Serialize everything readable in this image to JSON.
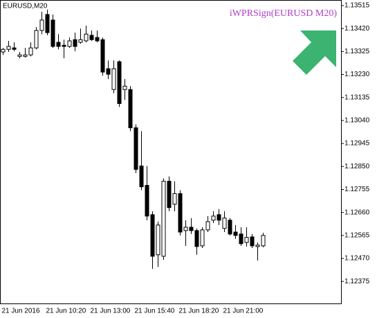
{
  "chart_data": {
    "type": "candlestick",
    "title": "EURUSD,M20",
    "annotation": "iWPRSign(EURUSD M20)",
    "categories": [
      "21 Jun 2016",
      null,
      null,
      null,
      null,
      null,
      null,
      null,
      "21 Jun 10:20",
      null,
      null,
      null,
      null,
      null,
      null,
      null,
      "21 Jun 13:00",
      null,
      null,
      null,
      null,
      null,
      null,
      null,
      "21 Jun 15:40",
      null,
      null,
      null,
      null,
      null,
      null,
      null,
      "21 Jun 18:20",
      null,
      null,
      null,
      null,
      null,
      null,
      null,
      "21 Jun 21:00",
      null,
      null,
      null,
      null,
      null,
      null,
      null
    ],
    "open": [
      1.13323,
      1.13334,
      1.1334,
      1.13305,
      1.13305,
      1.13311,
      1.1334,
      1.13412,
      1.13478,
      1.13455,
      1.13363,
      1.13351,
      1.13346,
      1.13374,
      1.13363,
      1.13369,
      1.13392,
      1.13383,
      1.13374,
      1.13254,
      1.13168,
      1.13283,
      1.13168,
      1.13168,
      1.1301,
      1.12852,
      1.12772,
      1.12651,
      1.12485,
      1.12479,
      1.12789,
      1.12694,
      1.12738,
      1.12585,
      1.12599,
      1.12585,
      1.12522,
      1.12588,
      1.12628,
      1.12651,
      1.12594,
      1.12628,
      1.12579,
      1.12571,
      1.12536,
      1.12559,
      1.12519,
      1.12522
    ],
    "high": [
      1.1334,
      1.13369,
      1.13363,
      1.13323,
      1.1334,
      1.13363,
      1.13426,
      1.13489,
      1.13498,
      1.13478,
      1.13397,
      1.13374,
      1.13383,
      1.13403,
      1.1342,
      1.13432,
      1.13412,
      1.13412,
      1.13383,
      1.13288,
      1.13288,
      1.13288,
      1.13211,
      1.13182,
      1.13024,
      1.12996,
      1.12852,
      1.12665,
      1.12622,
      1.128,
      1.12809,
      1.12789,
      1.12752,
      1.12628,
      1.12637,
      1.12594,
      1.12599,
      1.12645,
      1.12665,
      1.12674,
      1.12665,
      1.12637,
      1.12608,
      1.12599,
      1.12599,
      1.12571,
      1.12536,
      1.12576
    ],
    "low": [
      1.13311,
      1.13323,
      1.13326,
      1.13297,
      1.133,
      1.13305,
      1.13334,
      1.13397,
      1.13392,
      1.1334,
      1.13334,
      1.13297,
      1.1334,
      1.13326,
      1.13357,
      1.13363,
      1.13369,
      1.13363,
      1.13225,
      1.13211,
      1.13153,
      1.13096,
      1.13125,
      1.12996,
      1.12823,
      1.12752,
      1.12628,
      1.12427,
      1.12435,
      1.12464,
      1.12665,
      1.12665,
      1.12565,
      1.12522,
      1.12571,
      1.12485,
      1.12513,
      1.12579,
      1.12616,
      1.12608,
      1.12579,
      1.12565,
      1.12551,
      1.12522,
      1.12519,
      1.12513,
      1.12461,
      1.12516
    ],
    "close": [
      1.13334,
      1.13346,
      1.13334,
      1.13311,
      1.13311,
      1.1334,
      1.13412,
      1.13455,
      1.13403,
      1.13346,
      1.13346,
      1.13346,
      1.13369,
      1.13346,
      1.13374,
      1.13397,
      1.13374,
      1.13369,
      1.1324,
      1.13231,
      1.13254,
      1.1311,
      1.13182,
      1.1301,
      1.12838,
      1.12766,
      1.12645,
      1.12479,
      1.12608,
      1.12789,
      1.1268,
      1.12738,
      1.12579,
      1.12599,
      1.12585,
      1.12519,
      1.12588,
      1.12622,
      1.12645,
      1.12628,
      1.12637,
      1.12571,
      1.12565,
      1.12531,
      1.12557,
      1.12522,
      1.12525,
      1.12565
    ],
    "up_color": "#ffffff",
    "down_color": "#000000",
    "color": "#000000",
    "ylim": [
      1.12284,
      1.13535
    ],
    "yticks": [
      1.13515,
      {
        "value": 1.1342,
        "label": "1.13420"
      },
      1.13325,
      {
        "value": 1.1323,
        "label": "1.13230"
      },
      1.13135,
      {
        "value": 1.1304,
        "label": "1.13040"
      },
      1.12945,
      {
        "value": 1.1285,
        "label": "1.12850"
      },
      1.12755,
      {
        "value": 1.1266,
        "label": "1.12660"
      },
      1.12565,
      {
        "value": 1.1247,
        "label": "1.12470"
      },
      1.12375
    ],
    "grid": false
  }
}
